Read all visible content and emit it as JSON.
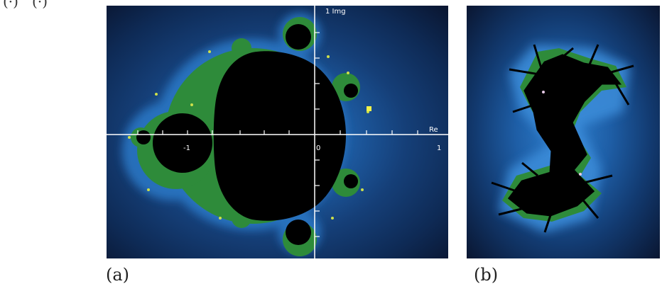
{
  "top_partial_label": "(·)   (·)",
  "figure_a": {
    "caption": "(a)",
    "imag_axis_label": "1 Img",
    "real_axis_label": "Re",
    "tick_labels": [
      "-1",
      "0",
      "1"
    ]
  },
  "figure_b": {
    "caption": "(b)"
  },
  "colors": {
    "background_outer": "#0b1834",
    "set_interior": "#000000",
    "boundary_green": "#2e8b3a",
    "boundary_yellow": "#d6e04a",
    "halo_blue": "#2a78c6",
    "axis": "#ffffff",
    "marker": "#f2f24a"
  }
}
